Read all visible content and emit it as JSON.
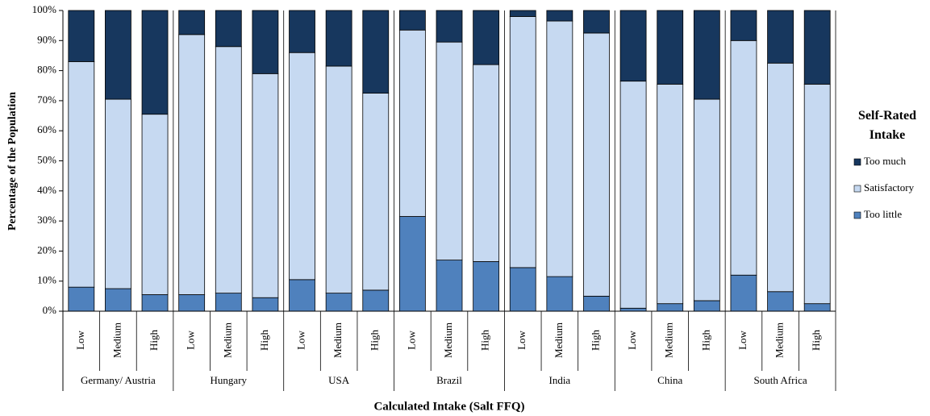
{
  "chart_data": {
    "type": "stacked_bar",
    "y_label": "Percentage of the Population",
    "x_label": "Calculated Intake (Salt FFQ)",
    "legend_title": "Self-Rated Intake",
    "groups": [
      {
        "name": "Germany/ Austria",
        "categories": [
          "Low",
          "Medium",
          "High"
        ]
      },
      {
        "name": "Hungary",
        "categories": [
          "Low",
          "Medium",
          "High"
        ]
      },
      {
        "name": "USA",
        "categories": [
          "Low",
          "Medium",
          "High"
        ]
      },
      {
        "name": "Brazil",
        "categories": [
          "Low",
          "Medium",
          "High"
        ]
      },
      {
        "name": "India",
        "categories": [
          "Low",
          "Medium",
          "High"
        ]
      },
      {
        "name": "China",
        "categories": [
          "Low",
          "Medium",
          "High"
        ]
      },
      {
        "name": "South Africa",
        "categories": [
          "Low",
          "Medium",
          "High"
        ]
      }
    ],
    "series": [
      {
        "name": "Too little",
        "color": "#4f81bd",
        "values": [
          8,
          7.5,
          5.5,
          5.5,
          6,
          4.5,
          10.5,
          6,
          7,
          31.5,
          17,
          16.5,
          14.5,
          11.5,
          5,
          1,
          2.5,
          3.5,
          12,
          6.5,
          2.5
        ]
      },
      {
        "name": "Satisfactory",
        "color": "#c6d9f1",
        "values": [
          75,
          63,
          60,
          86.5,
          82,
          74.5,
          75.5,
          75.5,
          65.5,
          62,
          72.5,
          65.5,
          83.5,
          85,
          87.5,
          75.5,
          73,
          67,
          78,
          76,
          73
        ]
      },
      {
        "name": "Too much",
        "color": "#17375e",
        "values": [
          17,
          29.5,
          34.5,
          8,
          12,
          21,
          14,
          18.5,
          27.5,
          6.5,
          10.5,
          18,
          2,
          3.5,
          7.5,
          23.5,
          24.5,
          29.5,
          10,
          17.5,
          24.5
        ]
      }
    ],
    "ylim": [
      0,
      100
    ],
    "yticks": [
      {
        "value": 0,
        "label": "0%"
      },
      {
        "value": 10,
        "label": "10%"
      },
      {
        "value": 20,
        "label": "20%"
      },
      {
        "value": 30,
        "label": "30%"
      },
      {
        "value": 40,
        "label": "40%"
      },
      {
        "value": 50,
        "label": "50%"
      },
      {
        "value": 60,
        "label": "60%"
      },
      {
        "value": 70,
        "label": "70%"
      },
      {
        "value": 80,
        "label": "80%"
      },
      {
        "value": 90,
        "label": "90%"
      },
      {
        "value": 100,
        "label": "100%"
      }
    ]
  }
}
